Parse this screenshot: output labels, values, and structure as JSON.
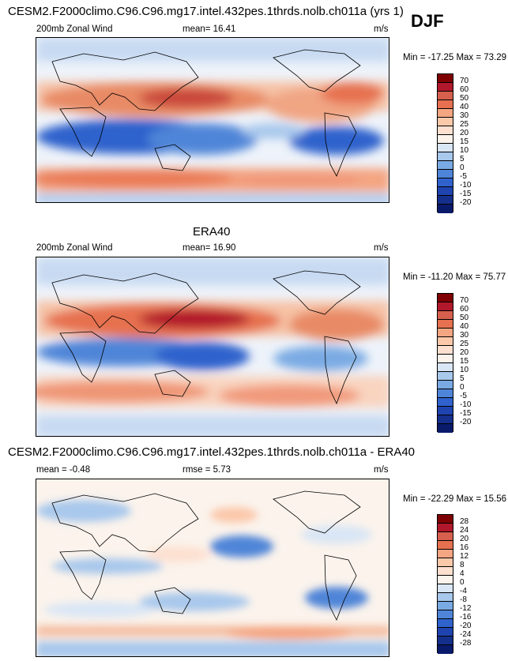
{
  "season": "DJF",
  "panels": [
    {
      "title": "CESM2.F2000climo.C96.C96.mg17.intel.432pes.1thrds.nolb.ch011a (yrs 1)",
      "left_label": "200mb Zonal Wind",
      "center_label": "mean=  16.41",
      "units": "m/s",
      "minmax": "Min = -17.25 Max =  73.29",
      "levels": [
        "70",
        "60",
        "50",
        "40",
        "30",
        "25",
        "20",
        "15",
        "10",
        "5",
        "0",
        "-5",
        "-10",
        "-15",
        "-20"
      ]
    },
    {
      "title": "ERA40",
      "left_label": "200mb Zonal Wind",
      "center_label": "mean=  16.90",
      "units": "m/s",
      "minmax": "Min = -11.20 Max =  75.77",
      "levels": [
        "70",
        "60",
        "50",
        "40",
        "30",
        "25",
        "20",
        "15",
        "10",
        "5",
        "0",
        "-5",
        "-10",
        "-15",
        "-20"
      ]
    },
    {
      "title": "CESM2.F2000climo.C96.C96.mg17.intel.432pes.1thrds.nolb.ch011a - ERA40",
      "left_label": "mean =  -0.48",
      "center_label": "rmse =   5.73",
      "units": "m/s",
      "minmax": "Min = -22.29 Max =  15.56",
      "levels": [
        "28",
        "24",
        "20",
        "16",
        "12",
        "8",
        "4",
        "0",
        "-4",
        "-8",
        "-12",
        "-16",
        "-20",
        "-24",
        "-28"
      ]
    }
  ],
  "colors": {
    "bar16": [
      "#7f0000",
      "#b2182b",
      "#d6604d",
      "#e6704f",
      "#f4a582",
      "#fbc8aa",
      "#fde0d0",
      "#fbf3ec",
      "#d9e6f5",
      "#a8c8ec",
      "#7aaae3",
      "#4f85d8",
      "#2f62cc",
      "#1f44b0",
      "#152f8c",
      "#0a1a6b"
    ]
  }
}
